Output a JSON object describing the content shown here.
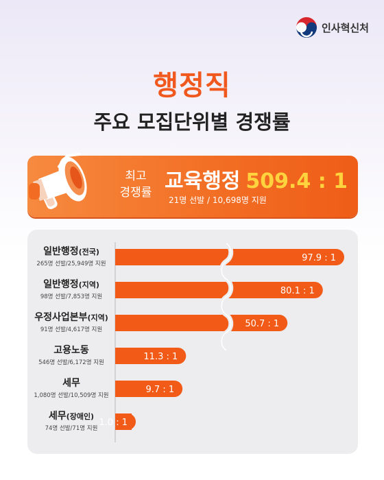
{
  "logo": {
    "text": "인사혁신처",
    "icon": "government-emblem-icon"
  },
  "title": {
    "main": "행정직",
    "sub": "주요 모집단위별 경쟁률"
  },
  "highlight": {
    "label_line1": "최고",
    "label_line2": "경쟁률",
    "unit": "교육행정",
    "ratio": "509.4 : 1",
    "note": "21명 선발 / 10,698명 지원",
    "icon": "megaphone-icon"
  },
  "colors": {
    "accent": "#f0581d",
    "bar": "#f25a17",
    "panel": "#ededef",
    "ratio_highlight": "#ffd33d"
  },
  "chart_data": {
    "type": "bar",
    "orientation": "horizontal",
    "axis_break": true,
    "categories": [
      {
        "name": "일반행정",
        "suffix": "(전국)",
        "note": "265명 선발/25,949명 지원"
      },
      {
        "name": "일반행정",
        "suffix": "(지역)",
        "note": "98명 선발/7,853명 지원"
      },
      {
        "name": "우정사업본부",
        "suffix": "(지역)",
        "note": "91명 선발/4,617명 지원"
      },
      {
        "name": "고용노동",
        "suffix": "",
        "note": "546명 선발/6,172명 지원"
      },
      {
        "name": "세무",
        "suffix": "",
        "note": "1,080명 선발/10,509명 지원"
      },
      {
        "name": "세무",
        "suffix": "(장애인)",
        "note": "74명 선발/71명 지원"
      }
    ],
    "values": [
      97.9,
      80.1,
      50.7,
      11.3,
      9.7,
      1.0
    ],
    "value_labels": [
      "97.9 : 1",
      "80.1 : 1",
      "50.7 : 1",
      "11.3 : 1",
      "9.7 : 1",
      "1.0 : 1"
    ]
  }
}
